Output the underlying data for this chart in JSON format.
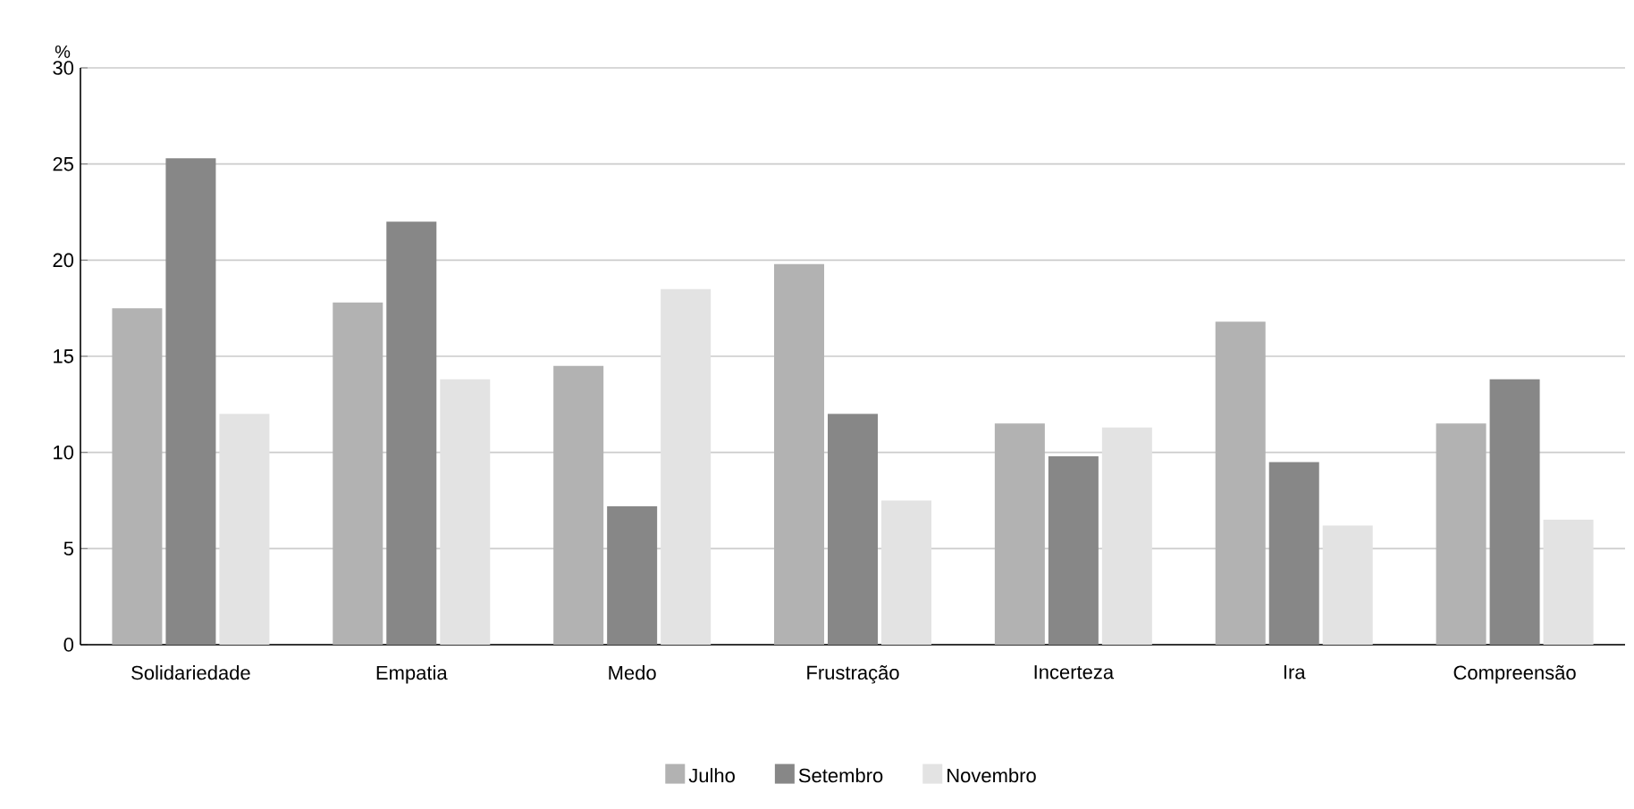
{
  "chart_data": {
    "type": "bar",
    "ylabel": "%",
    "categories": [
      "Solidariedade",
      "Empatia",
      "Medo",
      "Frustração",
      "Incerteza",
      "Ira",
      "Compreensão"
    ],
    "series": [
      {
        "name": "Julho",
        "color": "#b2b2b2",
        "values": [
          17.5,
          17.8,
          14.5,
          19.8,
          11.5,
          16.8,
          11.5
        ]
      },
      {
        "name": "Setembro",
        "color": "#878787",
        "values": [
          25.3,
          22.0,
          7.2,
          12.0,
          9.8,
          9.5,
          13.8
        ]
      },
      {
        "name": "Novembro",
        "color": "#e3e3e3",
        "values": [
          12.0,
          13.8,
          18.5,
          7.5,
          11.3,
          6.2,
          6.5
        ]
      }
    ],
    "ylim": [
      0,
      30
    ],
    "yticks": [
      0,
      5,
      10,
      15,
      20,
      25,
      30
    ],
    "grid": "y",
    "legend": "bottom"
  }
}
